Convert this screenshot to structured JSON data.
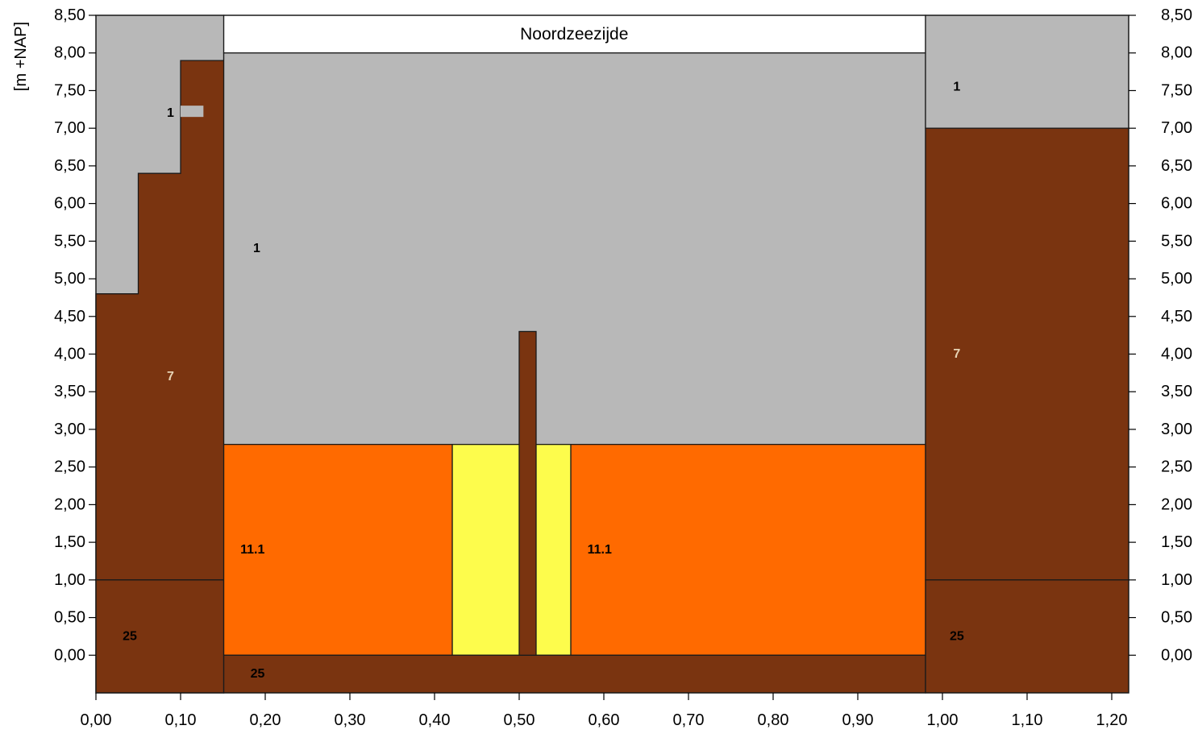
{
  "chart_data": {
    "type": "cross-section",
    "title": "",
    "ylabel": "[m +NAP]",
    "xlabel": "",
    "xlim": [
      0.0,
      1.22
    ],
    "ylim": [
      -0.5,
      8.5
    ],
    "x_ticks": [
      {
        "value": 0.0,
        "label": "0,00"
      },
      {
        "value": 0.1,
        "label": "0,10"
      },
      {
        "value": 0.2,
        "label": "0,20"
      },
      {
        "value": 0.3,
        "label": "0,30"
      },
      {
        "value": 0.4,
        "label": "0,40"
      },
      {
        "value": 0.5,
        "label": "0,50"
      },
      {
        "value": 0.6,
        "label": "0,60"
      },
      {
        "value": 0.7,
        "label": "0,70"
      },
      {
        "value": 0.8,
        "label": "0,80"
      },
      {
        "value": 0.9,
        "label": "0,90"
      },
      {
        "value": 1.0,
        "label": "1,00"
      },
      {
        "value": 1.1,
        "label": "1,10"
      },
      {
        "value": 1.2,
        "label": "1,20"
      }
    ],
    "y_ticks": [
      {
        "value": 0.0,
        "label": "0,00"
      },
      {
        "value": 0.5,
        "label": "0,50"
      },
      {
        "value": 1.0,
        "label": "1,00"
      },
      {
        "value": 1.5,
        "label": "1,50"
      },
      {
        "value": 2.0,
        "label": "2,00"
      },
      {
        "value": 2.5,
        "label": "2,50"
      },
      {
        "value": 3.0,
        "label": "3,00"
      },
      {
        "value": 3.5,
        "label": "3,50"
      },
      {
        "value": 4.0,
        "label": "4,00"
      },
      {
        "value": 4.5,
        "label": "4,50"
      },
      {
        "value": 5.0,
        "label": "5,00"
      },
      {
        "value": 5.5,
        "label": "5,50"
      },
      {
        "value": 6.0,
        "label": "6,00"
      },
      {
        "value": 6.5,
        "label": "6,50"
      },
      {
        "value": 7.0,
        "label": "7,00"
      },
      {
        "value": 7.5,
        "label": "7,50"
      },
      {
        "value": 8.0,
        "label": "8,00"
      },
      {
        "value": 8.5,
        "label": "8,50"
      }
    ],
    "colors": {
      "grey": "#b8b8b8",
      "brown": "#7a3410",
      "orange": "#ff6a00",
      "yellow": "#fdfc4c",
      "white": "#ffffff",
      "outline": "#1a1a1a"
    },
    "regions": [
      {
        "name": "left-grey-fill",
        "color": "grey",
        "x": [
          0.0,
          0.151
        ],
        "y": [
          -0.5,
          8.5
        ]
      },
      {
        "name": "left-brown-body",
        "color": "brown",
        "points": [
          [
            0.0,
            1.0
          ],
          [
            0.0,
            4.8
          ],
          [
            0.05,
            4.8
          ],
          [
            0.05,
            6.4
          ],
          [
            0.1,
            6.4
          ],
          [
            0.1,
            7.9
          ],
          [
            0.151,
            7.9
          ],
          [
            0.151,
            1.0
          ]
        ]
      },
      {
        "name": "left-brown-base",
        "color": "brown",
        "x": [
          0.0,
          0.151
        ],
        "y": [
          -0.5,
          1.0
        ]
      },
      {
        "name": "left-grey-notch",
        "color": "grey",
        "x": [
          0.1,
          0.127
        ],
        "y": [
          7.15,
          7.3
        ],
        "outline": false
      },
      {
        "name": "middle-banner",
        "color": "white",
        "x": [
          0.151,
          0.98
        ],
        "y": [
          8.0,
          8.5
        ]
      },
      {
        "name": "middle-grey-fill",
        "color": "grey",
        "x": [
          0.151,
          0.98
        ],
        "y": [
          2.8,
          8.0
        ]
      },
      {
        "name": "middle-orange-left",
        "color": "orange",
        "x": [
          0.151,
          0.421
        ],
        "y": [
          0.0,
          2.8
        ]
      },
      {
        "name": "middle-yellow",
        "color": "yellow",
        "x": [
          0.421,
          0.561
        ],
        "y": [
          0.0,
          2.8
        ]
      },
      {
        "name": "middle-orange-right",
        "color": "orange",
        "x": [
          0.561,
          0.98
        ],
        "y": [
          0.0,
          2.8
        ]
      },
      {
        "name": "middle-brown-base",
        "color": "brown",
        "x": [
          0.151,
          0.98
        ],
        "y": [
          -0.5,
          0.0
        ]
      },
      {
        "name": "center-wall",
        "color": "brown",
        "x": [
          0.5,
          0.52
        ],
        "y": [
          0.0,
          4.3
        ]
      },
      {
        "name": "right-grey-fill",
        "color": "grey",
        "x": [
          0.98,
          1.22
        ],
        "y": [
          7.0,
          8.5
        ]
      },
      {
        "name": "right-brown-body",
        "color": "brown",
        "x": [
          0.98,
          1.22
        ],
        "y": [
          1.0,
          7.0
        ]
      },
      {
        "name": "right-brown-base",
        "color": "brown",
        "x": [
          0.98,
          1.22
        ],
        "y": [
          -0.5,
          1.0
        ]
      }
    ],
    "annotations": [
      {
        "text": "Noordzeezijde",
        "x": 0.565,
        "y": 8.25,
        "style": "banner",
        "color": "#000000"
      },
      {
        "text": "1",
        "x": 0.088,
        "y": 7.2,
        "style": "region",
        "color": "#000000"
      },
      {
        "text": "7",
        "x": 0.088,
        "y": 3.7,
        "style": "region",
        "color": "#e6d2b4"
      },
      {
        "text": "25",
        "x": 0.04,
        "y": 0.25,
        "style": "region",
        "color": "#000000"
      },
      {
        "text": "1",
        "x": 0.19,
        "y": 5.4,
        "style": "region",
        "color": "#000000"
      },
      {
        "text": "11.1",
        "x": 0.185,
        "y": 1.4,
        "style": "region",
        "color": "#000000"
      },
      {
        "text": "11.1",
        "x": 0.595,
        "y": 1.4,
        "style": "region",
        "color": "#000000"
      },
      {
        "text": "25",
        "x": 0.191,
        "y": -0.25,
        "style": "region",
        "color": "#000000"
      },
      {
        "text": "1",
        "x": 1.017,
        "y": 7.55,
        "style": "region",
        "color": "#000000"
      },
      {
        "text": "7",
        "x": 1.017,
        "y": 4.0,
        "style": "region",
        "color": "#e6d2b4"
      },
      {
        "text": "25",
        "x": 1.017,
        "y": 0.25,
        "style": "region",
        "color": "#000000"
      }
    ]
  }
}
